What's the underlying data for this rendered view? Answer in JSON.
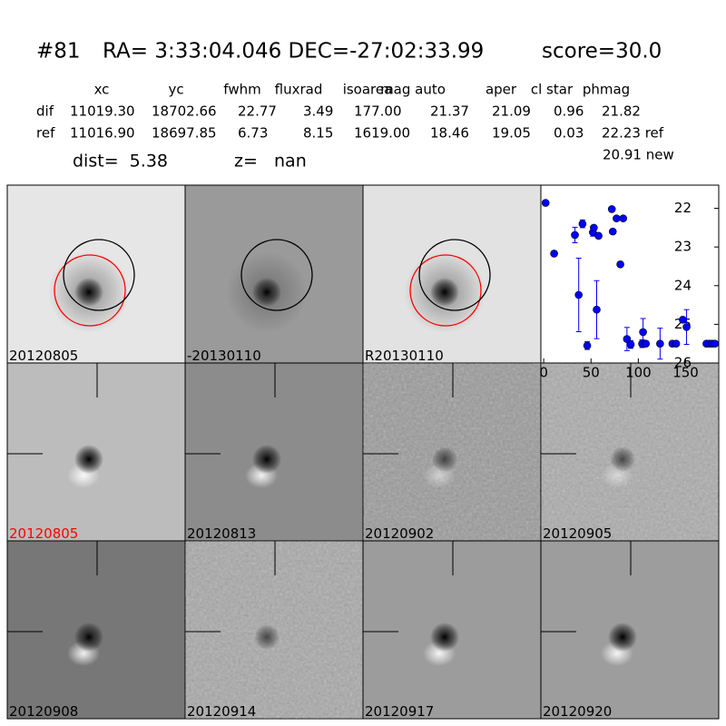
{
  "header": {
    "id": "#81",
    "coords": "RA= 3:33:04.046 DEC=-27:02:33.99",
    "score": "score=30.0"
  },
  "table": {
    "columns": [
      "xc",
      "yc",
      "fwhm",
      "fluxrad",
      "isoarea",
      "mag auto",
      "aper",
      "cl star",
      "phmag"
    ],
    "rows": [
      [
        "dif",
        "11019.30",
        "18702.66",
        "22.77",
        "3.49",
        "177.00",
        "21.37",
        "21.09",
        "0.96",
        "21.82"
      ],
      [
        "ref",
        "11016.90",
        "18697.85",
        "6.73",
        "8.15",
        "1619.00",
        "18.46",
        "19.05",
        "0.03",
        "22.23 ref"
      ]
    ],
    "extra": "20.91 new"
  },
  "dist": "dist=  5.38",
  "z": "z=   nan",
  "stamps": [
    "20120805",
    "-20130110",
    "R20130110",
    "20120805",
    "20120813",
    "20120902",
    "20120905",
    "20120908",
    "20120914",
    "20120917",
    "20120920"
  ],
  "chart_data": {
    "type": "scatter",
    "color": "#0000ff",
    "x": [
      2,
      11,
      33,
      37,
      41,
      46,
      52,
      53,
      56,
      58,
      72,
      73,
      77,
      81,
      84,
      88,
      92,
      104,
      105,
      108,
      123,
      136,
      140,
      147,
      151,
      172,
      175,
      178,
      181
    ],
    "values": [
      21.86,
      23.17,
      22.69,
      24.24,
      22.4,
      25.55,
      22.62,
      22.5,
      24.62,
      22.71,
      22.02,
      22.6,
      22.26,
      23.45,
      22.26,
      25.38,
      25.52,
      25.5,
      25.2,
      25.5,
      25.5,
      25.5,
      25.5,
      24.88,
      25.07,
      25.5,
      25.5,
      25.5,
      25.5
    ],
    "errors": [
      0,
      0,
      0.2,
      0.95,
      0.1,
      0.1,
      0.1,
      0,
      0.75,
      0.05,
      0,
      0.05,
      0,
      0.05,
      0,
      0.3,
      0.1,
      0.1,
      0.35,
      0,
      0.4,
      0,
      0,
      0,
      0.45,
      0,
      0,
      0,
      0
    ],
    "xlim": [
      -3,
      185
    ],
    "ylim": [
      26,
      21.4
    ],
    "xticks": [
      0,
      50,
      100,
      150
    ],
    "yticks": [
      22,
      23,
      24,
      25,
      26
    ]
  }
}
